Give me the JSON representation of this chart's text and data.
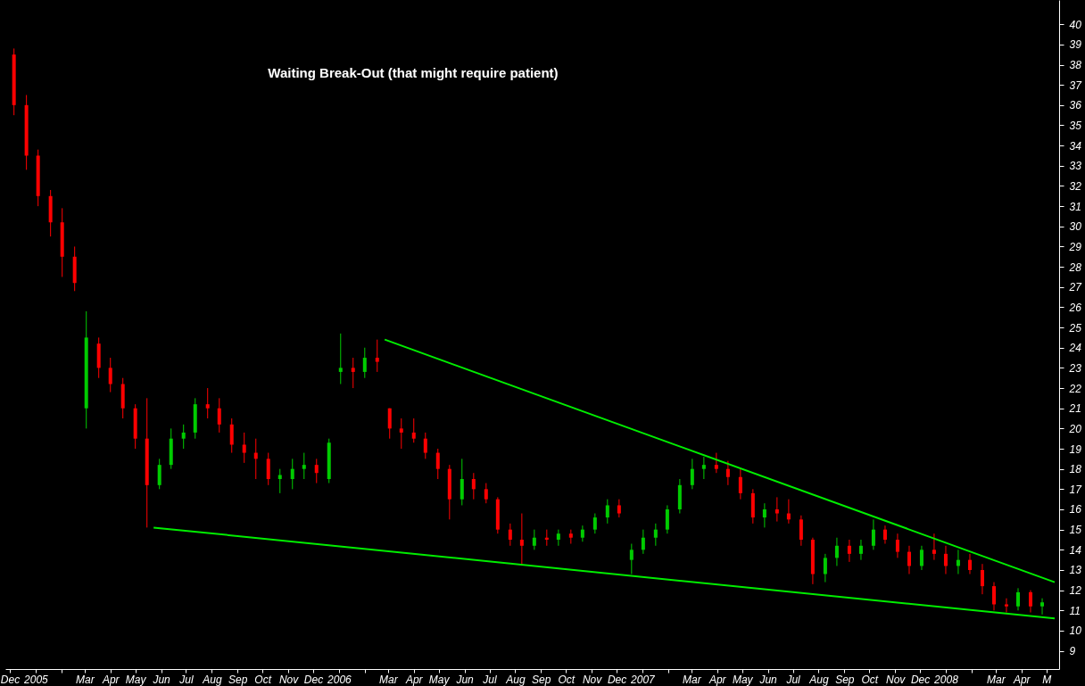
{
  "chart_data": {
    "type": "candlestick",
    "title": "Waiting Break-Out (that might require patient)",
    "x": [
      "2004-12-06",
      "2004-12-21",
      "2005-01-04",
      "2005-01-19",
      "2005-02-02",
      "2005-02-17",
      "2005-03-03",
      "2005-03-18",
      "2005-04-01",
      "2005-04-16",
      "2005-05-01",
      "2005-05-15",
      "2005-05-30",
      "2005-06-13",
      "2005-06-28",
      "2005-07-12",
      "2005-07-27",
      "2005-08-10",
      "2005-08-25",
      "2005-09-09",
      "2005-09-23",
      "2005-10-08",
      "2005-10-22",
      "2005-11-06",
      "2005-11-20",
      "2005-12-05",
      "2005-12-20",
      "2006-01-03",
      "2006-01-18",
      "2006-02-01",
      "2006-02-16",
      "2006-03-03",
      "2006-03-17",
      "2006-04-01",
      "2006-04-15",
      "2006-04-30",
      "2006-05-14",
      "2006-05-29",
      "2006-06-12",
      "2006-06-27",
      "2006-07-11",
      "2006-07-26",
      "2006-08-09",
      "2006-08-24",
      "2006-09-08",
      "2006-09-22",
      "2006-10-07",
      "2006-10-21",
      "2006-11-05",
      "2006-11-20",
      "2006-12-04",
      "2006-12-19",
      "2007-01-02",
      "2007-01-17",
      "2007-01-31",
      "2007-02-15",
      "2007-03-02",
      "2007-03-16",
      "2007-03-31",
      "2007-04-14",
      "2007-04-29",
      "2007-05-14",
      "2007-05-28",
      "2007-06-12",
      "2007-06-26",
      "2007-07-11",
      "2007-07-25",
      "2007-08-09",
      "2007-08-23",
      "2007-09-07",
      "2007-09-21",
      "2007-10-06",
      "2007-10-20",
      "2007-11-04",
      "2007-11-18",
      "2007-12-03",
      "2007-12-18",
      "2008-01-01",
      "2008-01-16",
      "2008-01-30",
      "2008-02-14",
      "2008-02-28",
      "2008-03-14",
      "2008-03-28",
      "2008-04-12",
      "2008-04-26"
    ],
    "ohlc": [
      [
        38.5,
        38.8,
        35.5,
        36
      ],
      [
        36,
        36.5,
        32.8,
        33.5
      ],
      [
        33.5,
        33.8,
        31,
        31.5
      ],
      [
        31.5,
        31.8,
        29.5,
        30.2
      ],
      [
        30.2,
        30.9,
        27.5,
        28.5
      ],
      [
        28.5,
        29,
        26.8,
        27.2
      ],
      [
        21,
        25.8,
        20,
        24.5
      ],
      [
        24.2,
        24.5,
        22.5,
        23
      ],
      [
        23,
        23.5,
        21.8,
        22.2
      ],
      [
        22.2,
        22.5,
        20.5,
        21
      ],
      [
        21,
        21.2,
        19,
        19.5
      ],
      [
        19.5,
        21.5,
        15.1,
        17.2
      ],
      [
        17.2,
        18.5,
        17,
        18.2
      ],
      [
        18.2,
        20,
        18,
        19.5
      ],
      [
        19.5,
        20.2,
        19,
        19.8
      ],
      [
        19.8,
        21.5,
        19.5,
        21.2
      ],
      [
        21.2,
        22,
        20.5,
        21
      ],
      [
        21,
        21.5,
        19.8,
        20.2
      ],
      [
        20.2,
        20.5,
        18.8,
        19.2
      ],
      [
        19.2,
        19.8,
        18.3,
        18.8
      ],
      [
        18.8,
        19.5,
        17.5,
        18.5
      ],
      [
        18.5,
        18.8,
        17.2,
        17.5
      ],
      [
        17.5,
        18,
        16.8,
        17.7
      ],
      [
        17.5,
        18.5,
        17,
        18
      ],
      [
        18,
        18.8,
        17.5,
        18.2
      ],
      [
        18.2,
        18.5,
        17.3,
        17.8
      ],
      [
        17.5,
        19.5,
        17.3,
        19.3
      ],
      [
        22.8,
        24.7,
        22.2,
        23
      ],
      [
        23,
        23.5,
        22,
        22.8
      ],
      [
        22.8,
        24,
        22.5,
        23.5
      ],
      [
        23.5,
        24.4,
        22.8,
        23.3
      ],
      [
        21,
        21,
        19.5,
        20
      ],
      [
        20,
        20.5,
        19,
        19.8
      ],
      [
        19.8,
        20.5,
        19.3,
        19.5
      ],
      [
        19.5,
        19.8,
        18.5,
        18.8
      ],
      [
        18.8,
        19,
        17.5,
        18
      ],
      [
        18,
        18.2,
        15.5,
        16.5
      ],
      [
        16.5,
        18.5,
        16.2,
        17.5
      ],
      [
        17.5,
        17.8,
        16.5,
        17
      ],
      [
        17,
        17.3,
        16.3,
        16.5
      ],
      [
        16.5,
        16.6,
        14.8,
        15
      ],
      [
        15,
        15.3,
        14.2,
        14.5
      ],
      [
        14.5,
        15.8,
        13.3,
        14.2
      ],
      [
        14.2,
        15,
        14,
        14.6
      ],
      [
        14.6,
        15,
        14.2,
        14.5
      ],
      [
        14.5,
        15,
        14.2,
        14.8
      ],
      [
        14.8,
        15,
        14.3,
        14.6
      ],
      [
        14.6,
        15.2,
        14.4,
        15
      ],
      [
        15,
        15.8,
        14.8,
        15.6
      ],
      [
        15.6,
        16.5,
        15.3,
        16.2
      ],
      [
        16.2,
        16.5,
        15.6,
        15.8
      ],
      [
        13.5,
        14.3,
        12.8,
        14
      ],
      [
        14,
        15,
        13.8,
        14.6
      ],
      [
        14.6,
        15.3,
        14.2,
        15
      ],
      [
        15,
        16.2,
        14.8,
        16
      ],
      [
        16,
        17.5,
        15.8,
        17.2
      ],
      [
        17.2,
        18.5,
        17,
        18
      ],
      [
        18,
        18.6,
        17.5,
        18.2
      ],
      [
        18.2,
        18.8,
        17.8,
        18
      ],
      [
        18,
        18.4,
        17.2,
        17.6
      ],
      [
        17.6,
        18,
        16.5,
        16.8
      ],
      [
        16.8,
        17,
        15.3,
        15.6
      ],
      [
        15.6,
        16.3,
        15.1,
        16
      ],
      [
        16,
        16.6,
        15.4,
        15.8
      ],
      [
        15.8,
        16.5,
        15.3,
        15.5
      ],
      [
        15.5,
        15.7,
        14.2,
        14.5
      ],
      [
        14.5,
        14.6,
        12.3,
        12.8
      ],
      [
        12.8,
        13.8,
        12.4,
        13.6
      ],
      [
        13.6,
        14.6,
        13.2,
        14.2
      ],
      [
        14.2,
        14.5,
        13.4,
        13.8
      ],
      [
        13.8,
        14.5,
        13.5,
        14.2
      ],
      [
        14.2,
        15.5,
        14,
        15
      ],
      [
        15,
        15.2,
        14.3,
        14.5
      ],
      [
        14.5,
        14.8,
        13.6,
        13.9
      ],
      [
        13.9,
        14.2,
        12.8,
        13.2
      ],
      [
        13.2,
        14.2,
        13,
        14
      ],
      [
        14,
        14.8,
        13.5,
        13.8
      ],
      [
        13.8,
        14.2,
        12.8,
        13.2
      ],
      [
        13.2,
        14,
        12.8,
        13.5
      ],
      [
        13.5,
        13.8,
        12.8,
        13
      ],
      [
        13,
        13.3,
        11.8,
        12.2
      ],
      [
        12.2,
        12.4,
        11,
        11.3
      ],
      [
        11.3,
        11.6,
        10.9,
        11.2
      ],
      [
        11.2,
        12.1,
        11,
        11.9
      ],
      [
        11.9,
        12,
        10.9,
        11.2
      ],
      [
        11.2,
        11.6,
        10.8,
        11.4
      ]
    ],
    "colors": [
      "#ff0000",
      "#ff0000",
      "#ff0000",
      "#ff0000",
      "#ff0000",
      "#ff0000",
      "#00cc00",
      "#ff0000",
      "#ff0000",
      "#ff0000",
      "#ff0000",
      "#ff0000",
      "#00cc00",
      "#00cc00",
      "#00cc00",
      "#00cc00",
      "#ff0000",
      "#ff0000",
      "#ff0000",
      "#ff0000",
      "#ff0000",
      "#ff0000",
      "#00cc00",
      "#00cc00",
      "#00cc00",
      "#ff0000",
      "#00cc00",
      "#00cc00",
      "#ff0000",
      "#00cc00",
      "#ff0000",
      "#ff0000",
      "#ff0000",
      "#ff0000",
      "#ff0000",
      "#ff0000",
      "#ff0000",
      "#00cc00",
      "#ff0000",
      "#ff0000",
      "#ff0000",
      "#ff0000",
      "#ff0000",
      "#00cc00",
      "#ff0000",
      "#00cc00",
      "#ff0000",
      "#00cc00",
      "#00cc00",
      "#00cc00",
      "#ff0000",
      "#00cc00",
      "#00cc00",
      "#00cc00",
      "#00cc00",
      "#00cc00",
      "#00cc00",
      "#00cc00",
      "#ff0000",
      "#ff0000",
      "#ff0000",
      "#ff0000",
      "#00cc00",
      "#ff0000",
      "#ff0000",
      "#ff0000",
      "#ff0000",
      "#00cc00",
      "#00cc00",
      "#ff0000",
      "#00cc00",
      "#00cc00",
      "#ff0000",
      "#ff0000",
      "#ff0000",
      "#00cc00",
      "#ff0000",
      "#ff0000",
      "#00cc00",
      "#ff0000",
      "#ff0000",
      "#ff0000",
      "#ff0000",
      "#00cc00",
      "#ff0000",
      "#00cc00"
    ],
    "series": [
      {
        "type": "line",
        "color": "#00ee00",
        "x": [
          "2006-02-25",
          "2008-05-11"
        ],
        "values": [
          24.4,
          12.4
        ]
      },
      {
        "type": "line",
        "color": "#00ee00",
        "x": [
          "2005-05-23",
          "2008-05-11"
        ],
        "values": [
          15.1,
          10.6
        ]
      }
    ],
    "xlim": [
      "2004-12-01",
      "2008-05-11"
    ],
    "xticks": [
      {
        "value": "2004-12-01",
        "label": "Dec"
      },
      {
        "value": "2005-01-01",
        "label": "2005"
      },
      {
        "value": "2005-02-01",
        "label": null
      },
      {
        "value": "2005-03-01",
        "label": "Mar"
      },
      {
        "value": "2005-04-01",
        "label": "Apr"
      },
      {
        "value": "2005-05-01",
        "label": "May"
      },
      {
        "value": "2005-06-01",
        "label": "Jun"
      },
      {
        "value": "2005-07-01",
        "label": "Jul"
      },
      {
        "value": "2005-08-01",
        "label": "Aug"
      },
      {
        "value": "2005-09-01",
        "label": "Sep"
      },
      {
        "value": "2005-10-01",
        "label": "Oct"
      },
      {
        "value": "2005-11-01",
        "label": "Nov"
      },
      {
        "value": "2005-12-01",
        "label": "Dec"
      },
      {
        "value": "2006-01-01",
        "label": "2006"
      },
      {
        "value": "2006-02-01",
        "label": null
      },
      {
        "value": "2006-03-01",
        "label": "Mar"
      },
      {
        "value": "2006-04-01",
        "label": "Apr"
      },
      {
        "value": "2006-05-01",
        "label": "May"
      },
      {
        "value": "2006-06-01",
        "label": "Jun"
      },
      {
        "value": "2006-07-01",
        "label": "Jul"
      },
      {
        "value": "2006-08-01",
        "label": "Aug"
      },
      {
        "value": "2006-09-01",
        "label": "Sep"
      },
      {
        "value": "2006-10-01",
        "label": "Oct"
      },
      {
        "value": "2006-11-01",
        "label": "Nov"
      },
      {
        "value": "2006-12-01",
        "label": "Dec"
      },
      {
        "value": "2007-01-01",
        "label": "2007"
      },
      {
        "value": "2007-02-01",
        "label": null
      },
      {
        "value": "2007-03-01",
        "label": "Mar"
      },
      {
        "value": "2007-04-01",
        "label": "Apr"
      },
      {
        "value": "2007-05-01",
        "label": "May"
      },
      {
        "value": "2007-06-01",
        "label": "Jun"
      },
      {
        "value": "2007-07-01",
        "label": "Jul"
      },
      {
        "value": "2007-08-01",
        "label": "Aug"
      },
      {
        "value": "2007-09-01",
        "label": "Sep"
      },
      {
        "value": "2007-10-01",
        "label": "Oct"
      },
      {
        "value": "2007-11-01",
        "label": "Nov"
      },
      {
        "value": "2007-12-01",
        "label": "Dec"
      },
      {
        "value": "2008-01-01",
        "label": "2008"
      },
      {
        "value": "2008-02-01",
        "label": null
      },
      {
        "value": "2008-03-01",
        "label": "Mar"
      },
      {
        "value": "2008-04-01",
        "label": "Apr"
      },
      {
        "value": "2008-05-01",
        "label": "M"
      }
    ],
    "ylim": [
      8.1,
      41.2
    ],
    "yticks": [
      9,
      10,
      11,
      12,
      13,
      14,
      15,
      16,
      17,
      18,
      19,
      20,
      21,
      22,
      23,
      24,
      25,
      26,
      27,
      28,
      29,
      30,
      31,
      32,
      33,
      34,
      35,
      36,
      37,
      38,
      39,
      40
    ],
    "grid": false
  }
}
